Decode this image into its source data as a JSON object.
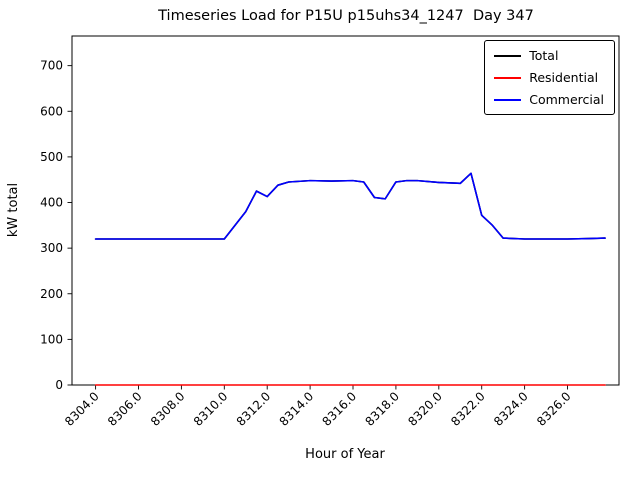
{
  "title": "Timeseries Load for P15U p15uhs34_1247  Day 347",
  "chart_data": {
    "type": "line",
    "title": "Timeseries Load for P15U p15uhs34_1247  Day 347",
    "xlabel": "Hour of Year",
    "ylabel": "kW total",
    "xlim": [
      8302.9,
      8328.4
    ],
    "ylim": [
      0,
      765
    ],
    "grid": false,
    "legend_position": "upper right",
    "xticks": [
      8304,
      8306,
      8308,
      8310,
      8312,
      8314,
      8316,
      8318,
      8320,
      8322,
      8324,
      8326
    ],
    "xtick_labels": [
      "8304.0",
      "8306.0",
      "8308.0",
      "8310.0",
      "8312.0",
      "8314.0",
      "8316.0",
      "8318.0",
      "8320.0",
      "8322.0",
      "8324.0",
      "8326.0"
    ],
    "yticks": [
      0,
      100,
      200,
      300,
      400,
      500,
      600,
      700
    ],
    "ytick_labels": [
      "0",
      "100",
      "200",
      "300",
      "400",
      "500",
      "600",
      "700"
    ],
    "x": [
      8304,
      8305,
      8306,
      8307,
      8308,
      8309,
      8310,
      8311,
      8311.5,
      8312,
      8312.5,
      8313,
      8314,
      8315,
      8316,
      8316.5,
      8317,
      8317.5,
      8318,
      8318.5,
      8319,
      8320,
      8321,
      8321.5,
      8322,
      8322.5,
      8323,
      8324,
      8325,
      8326,
      8327,
      8327.75
    ],
    "series": [
      {
        "name": "Total",
        "color": "#000000",
        "values": [
          320,
          320,
          320,
          320,
          320,
          320,
          320,
          380,
          425,
          413,
          438,
          445,
          448,
          447,
          448,
          445,
          411,
          408,
          445,
          448,
          448,
          444,
          442,
          464,
          372,
          350,
          322,
          320,
          320,
          320,
          321,
          322
        ]
      },
      {
        "name": "Residential",
        "color": "#ff0000",
        "values": [
          0,
          0,
          0,
          0,
          0,
          0,
          0,
          0,
          0,
          0,
          0,
          0,
          0,
          0,
          0,
          0,
          0,
          0,
          0,
          0,
          0,
          0,
          0,
          0,
          0,
          0,
          0,
          0,
          0,
          0,
          0,
          0
        ]
      },
      {
        "name": "Commercial",
        "color": "#0000ff",
        "values": [
          320,
          320,
          320,
          320,
          320,
          320,
          320,
          380,
          425,
          413,
          438,
          445,
          448,
          447,
          448,
          445,
          411,
          408,
          445,
          448,
          448,
          444,
          442,
          464,
          372,
          350,
          322,
          320,
          320,
          320,
          321,
          322
        ]
      }
    ]
  }
}
